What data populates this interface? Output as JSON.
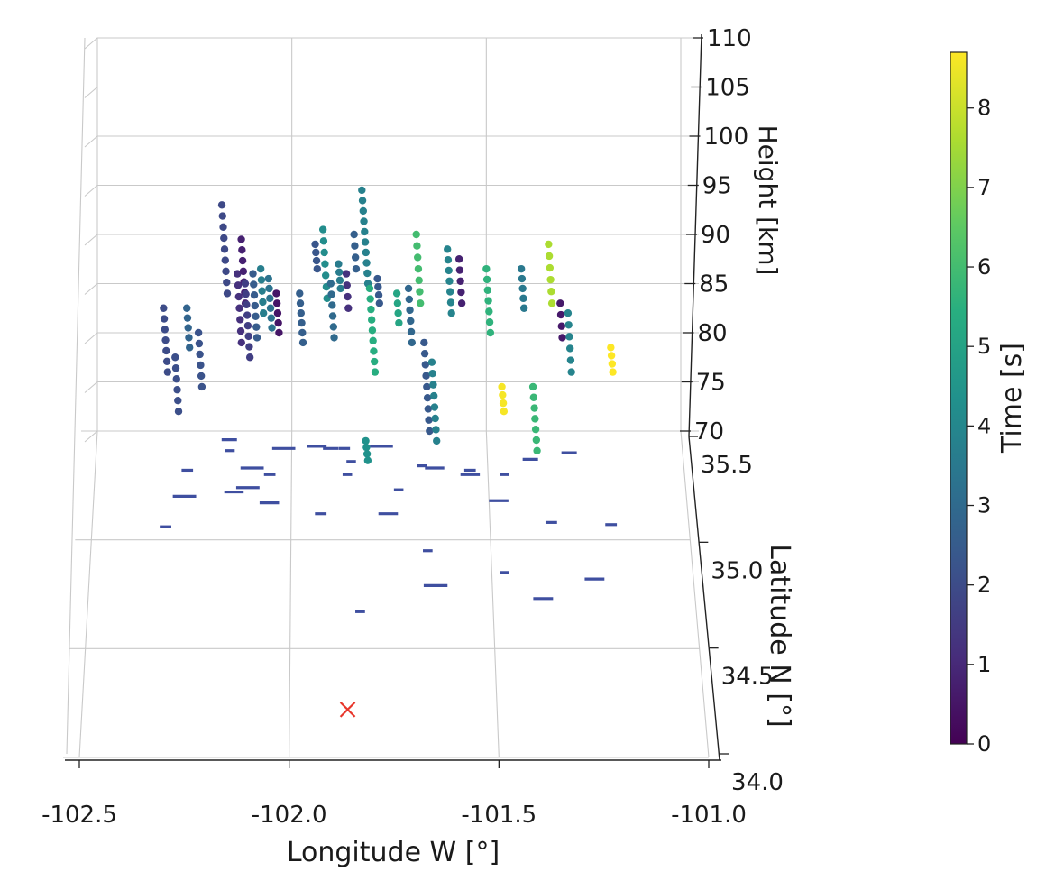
{
  "chart_data": {
    "type": "scatter",
    "projection": "3d",
    "xlabel": "Longitude W [°]",
    "ylabel": "Latitude N [°]",
    "zlabel": "Height [km]",
    "xlim": [
      -102.5,
      -101.0
    ],
    "ylim": [
      34.0,
      35.5
    ],
    "zlim": [
      70,
      110
    ],
    "x_ticks": [
      "-102.5",
      "-102.0",
      "-101.5",
      "-101.0"
    ],
    "y_ticks": [
      "34.0",
      "34.5",
      "35.0",
      "35.5"
    ],
    "z_ticks": [
      "70",
      "75",
      "80",
      "85",
      "90",
      "95",
      "100",
      "105",
      "110"
    ],
    "grid": true,
    "colorbar": {
      "label": "Time [s]",
      "colormap": "viridis",
      "range": [
        0,
        8.7
      ],
      "ticks": [
        "0",
        "1",
        "2",
        "3",
        "4",
        "5",
        "6",
        "7",
        "8"
      ]
    },
    "marker_color": "#3f4fa0",
    "ground_marker": {
      "symbol": "x",
      "color": "#e8372c",
      "x": -101.86,
      "y": 34.22
    },
    "streaks": [
      {
        "x": -102.33,
        "h_top": 82.5,
        "h_bot": 76.0,
        "t": 2.0
      },
      {
        "x": -102.3,
        "h_top": 77.5,
        "h_bot": 72.0,
        "t": 2.1
      },
      {
        "x": -102.27,
        "h_top": 82.5,
        "h_bot": 78.5,
        "t": 2.8
      },
      {
        "x": -102.24,
        "h_top": 80.0,
        "h_bot": 74.5,
        "t": 2.2
      },
      {
        "x": -102.18,
        "h_top": 93.0,
        "h_bot": 84.0,
        "t": 1.9
      },
      {
        "x": -102.14,
        "h_top": 86.0,
        "h_bot": 79.0,
        "t": 1.2
      },
      {
        "x": -102.13,
        "h_top": 89.5,
        "h_bot": 83.0,
        "t": 0.8
      },
      {
        "x": -102.12,
        "h_top": 85.0,
        "h_bot": 77.5,
        "t": 1.6
      },
      {
        "x": -102.1,
        "h_top": 86.0,
        "h_bot": 79.5,
        "t": 2.5
      },
      {
        "x": -102.08,
        "h_top": 86.5,
        "h_bot": 82.0,
        "t": 3.7
      },
      {
        "x": -102.06,
        "h_top": 85.5,
        "h_bot": 80.5,
        "t": 3.3
      },
      {
        "x": -102.04,
        "h_top": 84.0,
        "h_bot": 80.0,
        "t": 0.5
      },
      {
        "x": -101.98,
        "h_top": 84.0,
        "h_bot": 79.0,
        "t": 2.6
      },
      {
        "x": -101.94,
        "h_top": 89.0,
        "h_bot": 86.5,
        "t": 2.3
      },
      {
        "x": -101.92,
        "h_top": 90.5,
        "h_bot": 83.5,
        "t": 4.2
      },
      {
        "x": -101.9,
        "h_top": 85.0,
        "h_bot": 79.5,
        "t": 3.0
      },
      {
        "x": -101.88,
        "h_top": 87.0,
        "h_bot": 84.5,
        "t": 3.6
      },
      {
        "x": -101.86,
        "h_top": 86.0,
        "h_bot": 82.5,
        "t": 1.2
      },
      {
        "x": -101.84,
        "h_top": 90.0,
        "h_bot": 86.5,
        "t": 2.6
      },
      {
        "x": -101.82,
        "h_top": 94.5,
        "h_bot": 85.0,
        "t": 3.8
      },
      {
        "x": -101.8,
        "h_top": 84.5,
        "h_bot": 76.0,
        "t": 5.4
      },
      {
        "x": -101.78,
        "h_top": 85.5,
        "h_bot": 83.0,
        "t": 2.4
      },
      {
        "x": -101.73,
        "h_top": 84.0,
        "h_bot": 81.0,
        "t": 5.1
      },
      {
        "x": -101.7,
        "h_top": 84.5,
        "h_bot": 79.0,
        "t": 2.9
      },
      {
        "x": -101.68,
        "h_top": 90.0,
        "h_bot": 83.0,
        "t": 6.0
      },
      {
        "x": -101.66,
        "h_top": 79.0,
        "h_bot": 70.0,
        "t": 2.4
      },
      {
        "x": -101.64,
        "h_top": 77.0,
        "h_bot": 69.0,
        "t": 3.8
      },
      {
        "x": -101.6,
        "h_top": 88.5,
        "h_bot": 82.0,
        "t": 3.9
      },
      {
        "x": -101.57,
        "h_top": 87.5,
        "h_bot": 83.0,
        "t": 0.8
      },
      {
        "x": -101.5,
        "h_top": 86.5,
        "h_bot": 80.0,
        "t": 5.6
      },
      {
        "x": -101.46,
        "h_top": 74.5,
        "h_bot": 72.0,
        "t": 8.6
      },
      {
        "x": -101.41,
        "h_top": 86.5,
        "h_bot": 82.5,
        "t": 3.5
      },
      {
        "x": -101.38,
        "h_top": 74.5,
        "h_bot": 68.0,
        "t": 5.8
      },
      {
        "x": -101.34,
        "h_top": 89.0,
        "h_bot": 83.0,
        "t": 7.6
      },
      {
        "x": -101.31,
        "h_top": 83.0,
        "h_bot": 79.5,
        "t": 0.6
      },
      {
        "x": -101.29,
        "h_top": 82.0,
        "h_bot": 76.0,
        "t": 3.9
      },
      {
        "x": -101.18,
        "h_top": 78.5,
        "h_bot": 76.0,
        "t": 8.7
      },
      {
        "x": -101.81,
        "h_top": 69.0,
        "h_bot": 67.0,
        "t": 4.4
      }
    ],
    "ground_tracks": [
      {
        "x": -102.18,
        "y": 35.46,
        "len": 0.03
      },
      {
        "x": -102.05,
        "y": 35.42,
        "len": 0.05
      },
      {
        "x": -102.17,
        "y": 35.41,
        "len": 0.015
      },
      {
        "x": -101.96,
        "y": 35.43,
        "len": 0.04
      },
      {
        "x": -101.92,
        "y": 35.42,
        "len": 0.03
      },
      {
        "x": -101.88,
        "y": 35.42,
        "len": 0.02
      },
      {
        "x": -101.8,
        "y": 35.43,
        "len": 0.05
      },
      {
        "x": -102.28,
        "y": 35.32,
        "len": 0.02
      },
      {
        "x": -102.13,
        "y": 35.33,
        "len": 0.05
      },
      {
        "x": -102.07,
        "y": 35.3,
        "len": 0.02
      },
      {
        "x": -102.14,
        "y": 35.24,
        "len": 0.05
      },
      {
        "x": -102.17,
        "y": 35.22,
        "len": 0.04
      },
      {
        "x": -102.3,
        "y": 35.2,
        "len": 0.05
      },
      {
        "x": -102.08,
        "y": 35.17,
        "len": 0.04
      },
      {
        "x": -101.87,
        "y": 35.3,
        "len": 0.015
      },
      {
        "x": -101.86,
        "y": 35.36,
        "len": 0.015
      },
      {
        "x": -101.68,
        "y": 35.34,
        "len": 0.015
      },
      {
        "x": -101.66,
        "y": 35.33,
        "len": 0.04
      },
      {
        "x": -101.57,
        "y": 35.3,
        "len": 0.04
      },
      {
        "x": -101.56,
        "y": 35.32,
        "len": 0.02
      },
      {
        "x": -101.47,
        "y": 35.3,
        "len": 0.015
      },
      {
        "x": -101.41,
        "y": 35.37,
        "len": 0.03
      },
      {
        "x": -101.31,
        "y": 35.4,
        "len": 0.03
      },
      {
        "x": -101.74,
        "y": 35.23,
        "len": 0.015
      },
      {
        "x": -101.5,
        "y": 35.18,
        "len": 0.04
      },
      {
        "x": -101.94,
        "y": 35.12,
        "len": 0.02
      },
      {
        "x": -101.78,
        "y": 35.12,
        "len": 0.04
      },
      {
        "x": -102.33,
        "y": 35.06,
        "len": 0.02
      },
      {
        "x": -101.36,
        "y": 35.08,
        "len": 0.02
      },
      {
        "x": -101.21,
        "y": 35.07,
        "len": 0.02
      },
      {
        "x": -101.67,
        "y": 34.95,
        "len": 0.015
      },
      {
        "x": -101.48,
        "y": 34.85,
        "len": 0.015
      },
      {
        "x": -101.27,
        "y": 34.82,
        "len": 0.04
      },
      {
        "x": -101.67,
        "y": 34.79,
        "len": 0.05
      },
      {
        "x": -101.4,
        "y": 34.73,
        "len": 0.04
      },
      {
        "x": -101.84,
        "y": 34.67,
        "len": 0.015
      }
    ]
  }
}
